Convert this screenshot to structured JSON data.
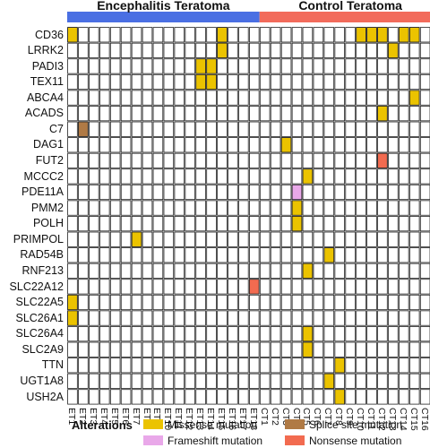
{
  "chart_data": {
    "type": "heatmap",
    "groups": [
      {
        "name": "Encephalitis Teratoma",
        "color": "#4a6fe3",
        "count": 18
      },
      {
        "name": "Control Teratoma",
        "color": "#f26b5b",
        "count": 17
      }
    ],
    "samples": [
      "ET1",
      "ET2",
      "ET3",
      "ET4",
      "ET5",
      "ET6",
      "ET7",
      "ET8",
      "ET9",
      "ET10",
      "ET11",
      "ET12",
      "ET13",
      "ET14",
      "ET15",
      "ET16",
      "ET17",
      "ET18",
      "CT1",
      "CT2",
      "CT3",
      "CT4",
      "CT5",
      "CT6",
      "CT7",
      "CT8",
      "CT9",
      "CT10",
      "CT11",
      "CT12",
      "CT13",
      "CT14",
      "CT15",
      "CT16",
      "CT17"
    ],
    "genes": [
      "CD36",
      "LRRK2",
      "PADI3",
      "TEX11",
      "ABCA4",
      "ACADS",
      "C7",
      "DAG1",
      "FUT2",
      "MCCC2",
      "PDE11A",
      "PMM2",
      "POLH",
      "PRIMPOL",
      "RAD54B",
      "RNF213",
      "SLC22A12",
      "SLC22A5",
      "SLC26A1",
      "SLC26A4",
      "SLC2A9",
      "TTN",
      "UGT1A8",
      "USH2A"
    ],
    "alteration_types": {
      "missense": {
        "label": "Missense mutation",
        "color": "#ebc300"
      },
      "splice": {
        "label": "Splice site mutation",
        "color": "#b07a45"
      },
      "frameshift": {
        "label": "Frameshift mutation",
        "color": "#e9a8e9"
      },
      "nonsense": {
        "label": "Nonsense mutation",
        "color": "#f26b50"
      }
    },
    "alterations": [
      {
        "gene": "CD36",
        "sample": "ET1",
        "type": "missense"
      },
      {
        "gene": "CD36",
        "sample": "ET15",
        "type": "missense"
      },
      {
        "gene": "CD36",
        "sample": "CT10",
        "type": "missense"
      },
      {
        "gene": "CD36",
        "sample": "CT11",
        "type": "missense"
      },
      {
        "gene": "CD36",
        "sample": "CT12",
        "type": "missense"
      },
      {
        "gene": "CD36",
        "sample": "CT14",
        "type": "missense"
      },
      {
        "gene": "CD36",
        "sample": "CT15",
        "type": "missense"
      },
      {
        "gene": "LRRK2",
        "sample": "ET15",
        "type": "missense"
      },
      {
        "gene": "LRRK2",
        "sample": "CT13",
        "type": "missense"
      },
      {
        "gene": "PADI3",
        "sample": "ET13",
        "type": "missense"
      },
      {
        "gene": "PADI3",
        "sample": "ET14",
        "type": "missense"
      },
      {
        "gene": "TEX11",
        "sample": "ET13",
        "type": "missense"
      },
      {
        "gene": "TEX11",
        "sample": "ET14",
        "type": "missense"
      },
      {
        "gene": "ABCA4",
        "sample": "CT15",
        "type": "missense"
      },
      {
        "gene": "ACADS",
        "sample": "CT12",
        "type": "missense"
      },
      {
        "gene": "C7",
        "sample": "ET2",
        "type": "splice"
      },
      {
        "gene": "DAG1",
        "sample": "CT3",
        "type": "missense"
      },
      {
        "gene": "FUT2",
        "sample": "CT12",
        "type": "nonsense"
      },
      {
        "gene": "MCCC2",
        "sample": "CT5",
        "type": "missense"
      },
      {
        "gene": "PDE11A",
        "sample": "CT4",
        "type": "frameshift"
      },
      {
        "gene": "PMM2",
        "sample": "CT4",
        "type": "missense"
      },
      {
        "gene": "POLH",
        "sample": "CT4",
        "type": "missense"
      },
      {
        "gene": "PRIMPOL",
        "sample": "ET7",
        "type": "missense"
      },
      {
        "gene": "RAD54B",
        "sample": "CT7",
        "type": "missense"
      },
      {
        "gene": "RNF213",
        "sample": "CT5",
        "type": "missense"
      },
      {
        "gene": "SLC22A12",
        "sample": "ET18",
        "type": "nonsense"
      },
      {
        "gene": "SLC22A5",
        "sample": "ET1",
        "type": "missense"
      },
      {
        "gene": "SLC26A1",
        "sample": "ET1",
        "type": "missense"
      },
      {
        "gene": "SLC26A4",
        "sample": "CT5",
        "type": "missense"
      },
      {
        "gene": "SLC2A9",
        "sample": "CT5",
        "type": "missense"
      },
      {
        "gene": "TTN",
        "sample": "CT8",
        "type": "missense"
      },
      {
        "gene": "UGT1A8",
        "sample": "CT7",
        "type": "missense"
      },
      {
        "gene": "USH2A",
        "sample": "CT8",
        "type": "missense"
      }
    ],
    "legend_title": "Alterations",
    "legend_order": [
      "missense",
      "splice",
      "frameshift",
      "nonsense"
    ]
  }
}
